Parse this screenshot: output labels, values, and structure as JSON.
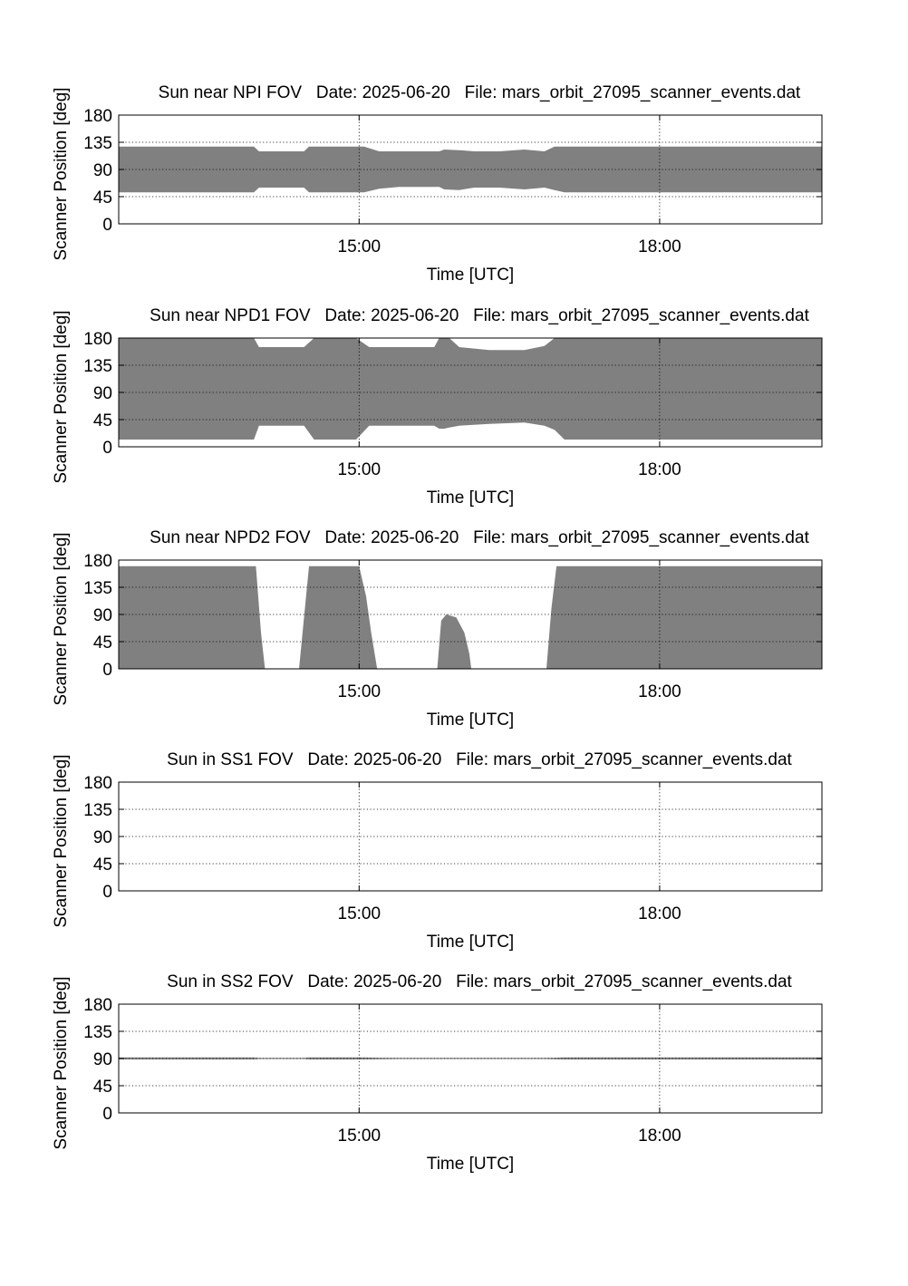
{
  "chart_data": [
    {
      "type": "area",
      "title": "Sun near NPI FOV   Date: 2025-06-20   File: mars_orbit_27095_scanner_events.dat",
      "xlabel": "Time [UTC]",
      "ylabel": "Scanner Position [deg]",
      "x_ticks": [
        "15:00",
        "18:00"
      ],
      "x_tick_values": [
        15.0,
        18.0
      ],
      "xlim": [
        12.6,
        19.62
      ],
      "y_ticks": [
        "0",
        "45",
        "90",
        "135",
        "180"
      ],
      "ylim": [
        0,
        180
      ],
      "grid": true,
      "color": "#808080",
      "series": [
        {
          "x": [
            12.6,
            13.95,
            14.0,
            14.45,
            14.5,
            15.05,
            15.2,
            15.4,
            15.8,
            15.85,
            16.0,
            16.15,
            16.4,
            16.65,
            16.85,
            16.95,
            17.05,
            19.62
          ],
          "lower": [
            52,
            52,
            60,
            60,
            52,
            52,
            58,
            61,
            61,
            57,
            56,
            60,
            60,
            57,
            60,
            56,
            52,
            52
          ],
          "upper": [
            128,
            128,
            120,
            120,
            128,
            128,
            120,
            120,
            120,
            123,
            122,
            120,
            120,
            123,
            120,
            128,
            128,
            128
          ]
        }
      ]
    },
    {
      "type": "area",
      "title": "Sun near NPD1 FOV   Date: 2025-06-20   File: mars_orbit_27095_scanner_events.dat",
      "xlabel": "Time [UTC]",
      "ylabel": "Scanner Position [deg]",
      "x_ticks": [
        "15:00",
        "18:00"
      ],
      "x_tick_values": [
        15.0,
        18.0
      ],
      "xlim": [
        12.6,
        19.62
      ],
      "y_ticks": [
        "0",
        "45",
        "90",
        "135",
        "180"
      ],
      "ylim": [
        0,
        180
      ],
      "grid": true,
      "color": "#808080",
      "series": [
        {
          "x": [
            12.6,
            13.95,
            14.0,
            14.45,
            14.55,
            14.63,
            14.97,
            15.1,
            15.2,
            15.75,
            15.8,
            15.85,
            15.9,
            16.0,
            16.3,
            16.65,
            16.85,
            16.95,
            17.05,
            19.62
          ],
          "lower": [
            12,
            12,
            35,
            35,
            12,
            12,
            12,
            35,
            35,
            35,
            30,
            30,
            32,
            35,
            38,
            40,
            35,
            28,
            12,
            12
          ],
          "upper": [
            180,
            180,
            165,
            165,
            180,
            180,
            180,
            165,
            165,
            165,
            180,
            180,
            180,
            165,
            160,
            160,
            167,
            180,
            180,
            180
          ]
        }
      ]
    },
    {
      "type": "area",
      "title": "Sun near NPD2 FOV   Date: 2025-06-20   File: mars_orbit_27095_scanner_events.dat",
      "xlabel": "Time [UTC]",
      "ylabel": "Scanner Position [deg]",
      "x_ticks": [
        "15:00",
        "18:00"
      ],
      "x_tick_values": [
        15.0,
        18.0
      ],
      "xlim": [
        12.6,
        19.62
      ],
      "y_ticks": [
        "0",
        "45",
        "90",
        "135",
        "180"
      ],
      "ylim": [
        0,
        180
      ],
      "grid": true,
      "color": "#808080",
      "series": [
        {
          "x": [
            12.6,
            13.97,
            14.02,
            14.06
          ],
          "lower": [
            0,
            0,
            0,
            0
          ],
          "upper": [
            170,
            170,
            60,
            0
          ]
        },
        {
          "x": [
            14.4,
            14.5,
            15.0,
            15.07,
            15.12,
            15.18
          ],
          "lower": [
            0,
            0,
            0,
            0,
            0,
            0
          ],
          "upper": [
            0,
            170,
            170,
            120,
            60,
            0
          ]
        },
        {
          "x": [
            15.78,
            15.82,
            15.87,
            15.97,
            16.05,
            16.1,
            16.12
          ],
          "lower": [
            0,
            0,
            0,
            0,
            0,
            0,
            0
          ],
          "upper": [
            0,
            80,
            90,
            85,
            60,
            25,
            0
          ]
        },
        {
          "x": [
            16.87,
            16.92,
            16.97,
            19.62
          ],
          "lower": [
            0,
            0,
            0,
            0
          ],
          "upper": [
            0,
            100,
            170,
            170
          ]
        }
      ]
    },
    {
      "type": "area",
      "title": "Sun in SS1 FOV   Date: 2025-06-20   File: mars_orbit_27095_scanner_events.dat",
      "xlabel": "Time [UTC]",
      "ylabel": "Scanner Position [deg]",
      "x_ticks": [
        "15:00",
        "18:00"
      ],
      "x_tick_values": [
        15.0,
        18.0
      ],
      "xlim": [
        12.6,
        19.62
      ],
      "y_ticks": [
        "0",
        "45",
        "90",
        "135",
        "180"
      ],
      "ylim": [
        0,
        180
      ],
      "grid": true,
      "color": "#808080",
      "series": []
    },
    {
      "type": "area",
      "title": "Sun in SS2 FOV   Date: 2025-06-20   File: mars_orbit_27095_scanner_events.dat",
      "xlabel": "Time [UTC]",
      "ylabel": "Scanner Position [deg]",
      "x_ticks": [
        "15:00",
        "18:00"
      ],
      "x_tick_values": [
        15.0,
        18.0
      ],
      "xlim": [
        12.6,
        19.62
      ],
      "y_ticks": [
        "0",
        "45",
        "90",
        "135",
        "180"
      ],
      "ylim": [
        0,
        180
      ],
      "grid": true,
      "color": "#808080",
      "series": [
        {
          "x": [
            12.6,
            13.95,
            14.0,
            14.45,
            14.5,
            15.05,
            15.2,
            15.4,
            15.8,
            16.85,
            16.95,
            17.05,
            19.62
          ],
          "lower": [
            88.5,
            88.5,
            89.3,
            89.3,
            88.5,
            88.5,
            89.0,
            89.3,
            89.3,
            89.3,
            89.0,
            88.5,
            88.5
          ],
          "upper": [
            92,
            92,
            91.2,
            91.2,
            92,
            92,
            91.4,
            91.2,
            91.2,
            91.2,
            91.4,
            92,
            92
          ]
        }
      ]
    }
  ]
}
